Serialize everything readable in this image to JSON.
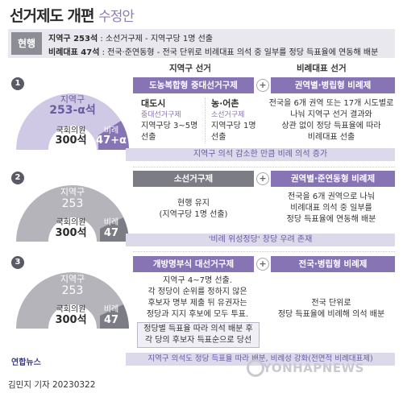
{
  "title": {
    "main": "선거제도 개편",
    "sub": "수정안"
  },
  "current": {
    "tag": "현행",
    "line1_bold": "지역구 253석",
    "line1_rest": " : 소선거구제 - 지역구당 1명 선출",
    "line2_bold": "비례대표 47석",
    "line2_rest": " : 전국·준연동형 - 전국 단위로 비례대표 의석 중 일부를 정당 득표율에 연동해 배분"
  },
  "columns": {
    "district": "지역구 선거",
    "proportional": "비례대표 선거"
  },
  "plans": [
    {
      "number": "1",
      "seat_district_label": "지역구",
      "seat_district": "253-α석",
      "seat_total_label": "국회의원",
      "seat_total": "300석",
      "seat_prop_label": "비례",
      "seat_prop": "47+α",
      "district_bar": "도농복합형 중대선거구제",
      "prop_bar": "권역별·병립형 비례제",
      "urban_title": "대도시",
      "urban_sub": "중대선거구제",
      "urban_desc1": "지역구당 3~5명",
      "urban_desc2": "선출",
      "rural_title": "농·어촌",
      "rural_sub": "소선거구제",
      "rural_desc1": "지역구당 1명",
      "rural_desc2": "선출",
      "prop_desc1": "전국을 6개 권역 또는 17개 시도별로",
      "prop_desc2": "나눠 지역구 선거 결과와",
      "prop_desc3": "상관 없이 정당 득표율에 따라",
      "prop_desc4": "비례대표 선출",
      "note": "지역구 의석 감소한 만큼 비례 의석 증가"
    },
    {
      "number": "2",
      "seat_district_label": "지역구",
      "seat_district": "253",
      "seat_total_label": "국회의원",
      "seat_total": "300석",
      "seat_prop_label": "비례",
      "seat_prop": "47",
      "district_bar": "소선거구제",
      "prop_bar": "권역별·준연동형 비례제",
      "district_desc1": "현행 유지",
      "district_desc2": "(지역구당 1명 선출)",
      "prop_desc1": "전국을 6개 권역으로 나눠",
      "prop_desc2": "비례대표 의석 중 일부를",
      "prop_desc3": "정당 득표율에 연동해 배분",
      "note": "'비례 위성정당' 창당 우려 존재"
    },
    {
      "number": "3",
      "seat_district_label": "지역구",
      "seat_district": "253",
      "seat_total_label": "국회의원",
      "seat_total": "300석",
      "seat_prop_label": "비례",
      "seat_prop": "47",
      "district_bar": "개방명부식 대선거구제",
      "prop_bar": "전국·병립형 비례제",
      "district_desc1": "지역구 4~7명 선출.",
      "district_desc2": "각 정당이 순위를 정하지 않은",
      "district_desc3": "후보자 명부 제출 뒤 유권자는",
      "district_desc4": "정당과 지지 후보에 모두 투표.",
      "district_desc5": "정당별 득표율 따라 의석 배분 후",
      "district_desc6": "각 당의 후보자 득표순으로 당선",
      "prop_desc1": "전국 단위로",
      "prop_desc2": "정당 득표율에 비례해 의석 배분",
      "note": "지역구 의석도 정당 득표율 따라 배분, 비례성 강화(전면적 비례대표제)"
    }
  ],
  "footer": {
    "logo": "연합뉴스",
    "author": "김민지 기자  20230322",
    "watermark": "YONHAPNEWS"
  },
  "colors": {
    "purple": "#8774b5",
    "gray": "#7c7c84",
    "light_purple": "#d0c9e6",
    "light_gray": "#b4b4ba"
  }
}
